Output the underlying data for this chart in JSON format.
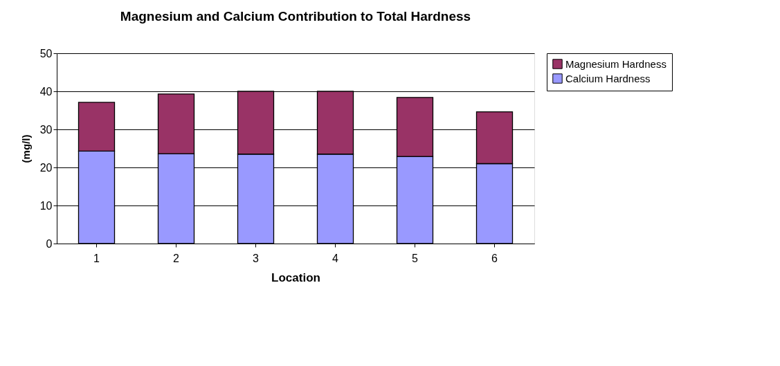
{
  "chart_data": {
    "type": "bar",
    "title": "Magnesium and Calcium Contribution to Total Hardness",
    "xlabel": "Location",
    "ylabel": "(mg/l)",
    "categories": [
      "1",
      "2",
      "3",
      "4",
      "5",
      "6"
    ],
    "stacked": true,
    "series": [
      {
        "name": "Calcium Hardness",
        "color": "#9999ff",
        "values": [
          24.3,
          23.6,
          23.5,
          23.5,
          22.9,
          21.0
        ]
      },
      {
        "name": "Magnesium Hardness",
        "color": "#993366",
        "values": [
          12.8,
          15.7,
          16.5,
          16.5,
          15.5,
          13.6
        ]
      }
    ],
    "ylim": [
      0,
      50
    ],
    "yticks": [
      0,
      10,
      20,
      30,
      40,
      50
    ],
    "grid": "y",
    "legend": "right"
  }
}
